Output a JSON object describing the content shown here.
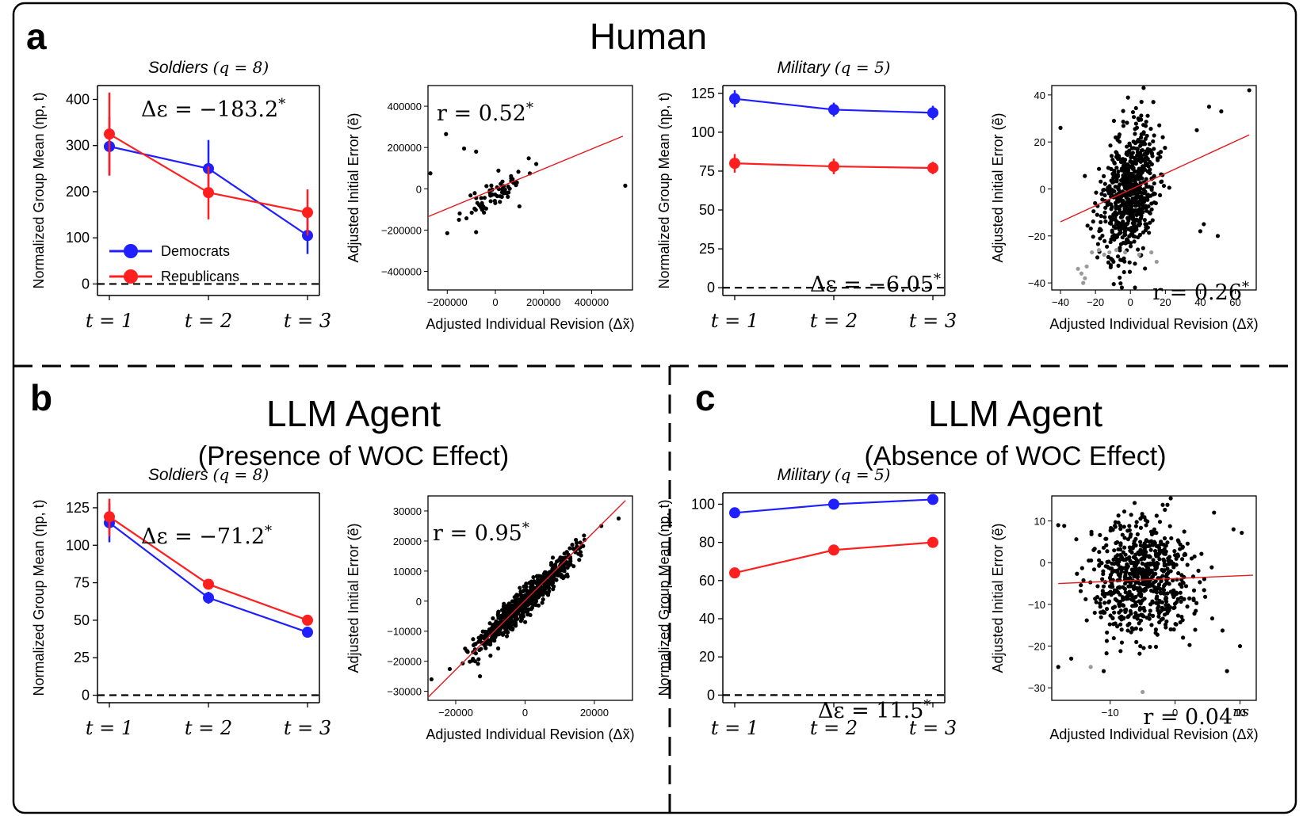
{
  "figure": {
    "panel_letters": {
      "a": "a",
      "b": "b",
      "c": "c"
    },
    "headings": {
      "a": "Human",
      "b": "LLM Agent",
      "b_sub": "(Presence of WOC Effect)",
      "c": "LLM Agent",
      "c_sub": "(Absence of WOC Effect)"
    },
    "colors": {
      "democrats": "#1f1fff",
      "republicans": "#ff1f1f",
      "scatter": "#000000",
      "outlier": "#9a9a9a",
      "fit": "#e41a1c",
      "frame": "#000000"
    }
  },
  "chart_data": [
    {
      "id": "a-soldiers",
      "type": "line",
      "title": "Soldiers",
      "title_q": "(q = 8)",
      "xlabel": "",
      "ylabel": "Normalized Group Mean (η_{p,t})",
      "categories": [
        "t = 1",
        "t = 2",
        "t = 3"
      ],
      "yticks": [
        0,
        100,
        200,
        300,
        400
      ],
      "ylim": [
        -25,
        430
      ],
      "grid": false,
      "legend_position": "lower-left",
      "series": [
        {
          "name": "Democrats",
          "color": "#1f1fff",
          "values": [
            298,
            250,
            105
          ],
          "err": [
            [
              235,
              362
            ],
            [
              190,
              312
            ],
            [
              65,
              145
            ]
          ]
        },
        {
          "name": "Republicans",
          "color": "#ff1f1f",
          "values": [
            325,
            198,
            155
          ],
          "err": [
            [
              235,
              415
            ],
            [
              140,
              255
            ],
            [
              105,
              205
            ]
          ]
        }
      ],
      "reference_line": 0,
      "annotation": "Δε = −183.2*"
    },
    {
      "id": "a-soldiers-scatter",
      "type": "scatter",
      "xlabel": "Adjusted Individual Revision (Δx̃)",
      "ylabel": "Adjusted Initial Error (ẽ)",
      "xticks": [
        -200000,
        0,
        200000,
        400000
      ],
      "xtick_labels": [
        "−200000",
        "0",
        "200000",
        "400000"
      ],
      "yticks": [
        -400000,
        -200000,
        0,
        200000,
        400000
      ],
      "ytick_labels": [
        "−400000",
        "−200000",
        "0",
        "200000",
        "400000"
      ],
      "xlim": [
        -280000,
        570000
      ],
      "ylim": [
        -490000,
        500000
      ],
      "fit": {
        "x": [
          -280000,
          530000
        ],
        "y": [
          -135000,
          255000
        ]
      },
      "annotation": "r = 0.52*",
      "points": {
        "n": 70,
        "center": [
          0,
          -20000
        ],
        "spread": [
          60000,
          55000
        ],
        "corr": 0.75,
        "seed": 11,
        "extra": [
          [
            -280000,
            75000
          ],
          [
            -205000,
            265000
          ],
          [
            -130000,
            195000
          ],
          [
            -80000,
            180000
          ],
          [
            540000,
            15000
          ],
          [
            -200000,
            -215000
          ],
          [
            -80000,
            -210000
          ],
          [
            100000,
            -85000
          ],
          [
            170000,
            120000
          ]
        ]
      }
    },
    {
      "id": "a-military",
      "type": "line",
      "title": "Military",
      "title_q": "(q = 5)",
      "xlabel": "",
      "ylabel": "Normalized Group Mean (η_{p,t})",
      "categories": [
        "t = 1",
        "t = 2",
        "t = 3"
      ],
      "yticks": [
        0,
        25,
        50,
        75,
        100,
        125
      ],
      "ylim": [
        -5,
        130
      ],
      "grid": false,
      "series": [
        {
          "name": "Democrats",
          "color": "#1f1fff",
          "values": [
            121.5,
            114.5,
            112.5
          ],
          "err": [
            [
              116,
              127
            ],
            [
              110,
              119
            ],
            [
              108,
              117
            ]
          ]
        },
        {
          "name": "Republicans",
          "color": "#ff1f1f",
          "values": [
            80,
            78,
            77
          ],
          "err": [
            [
              74,
              86
            ],
            [
              73,
              83
            ],
            [
              73,
              81
            ]
          ]
        }
      ],
      "reference_line": 0,
      "annotation": "Δε = −6.05*"
    },
    {
      "id": "a-military-scatter",
      "type": "scatter",
      "xlabel": "Adjusted Individual Revision (Δx̃)",
      "ylabel": "Adjusted Initial Error (ẽ)",
      "xticks": [
        -40,
        -20,
        0,
        20,
        40,
        60
      ],
      "xtick_labels": [
        "−40",
        "−20",
        "0",
        "20",
        "40",
        "60"
      ],
      "yticks": [
        -40,
        -20,
        0,
        20,
        40
      ],
      "ytick_labels": [
        "−40",
        "−20",
        "0",
        "20",
        "40"
      ],
      "xlim": [
        -45,
        72
      ],
      "ylim": [
        -43,
        44
      ],
      "fit": {
        "x": [
          -40,
          68
        ],
        "y": [
          -14,
          23
        ]
      },
      "annotation": "r = 0.26*",
      "points": {
        "n": 700,
        "center": [
          -1,
          -2
        ],
        "spread": [
          8,
          14
        ],
        "corr": 0.3,
        "seed": 23,
        "extra": [
          [
            -40,
            26
          ],
          [
            68,
            42
          ],
          [
            45,
            35
          ],
          [
            52,
            33
          ],
          [
            42,
            -15
          ],
          [
            50,
            -20
          ],
          [
            40,
            -18
          ],
          [
            38,
            25
          ]
        ]
      },
      "outliers": [
        [
          -30,
          -34
        ],
        [
          -28,
          -36
        ],
        [
          -26,
          -38
        ],
        [
          -25,
          -33
        ],
        [
          -22,
          -27
        ],
        [
          -18,
          -26
        ],
        [
          -15,
          -28
        ],
        [
          -12,
          -27
        ],
        [
          -8,
          -26
        ],
        [
          -3,
          -27
        ],
        [
          5,
          -28
        ],
        [
          12,
          -27
        ],
        [
          15,
          -31
        ],
        [
          -27,
          -40
        ]
      ]
    },
    {
      "id": "b-soldiers",
      "type": "line",
      "title": "Soldiers",
      "title_q": "(q = 8)",
      "xlabel": "",
      "ylabel": "Normalized Group Mean (η_{p,t})",
      "categories": [
        "t = 1",
        "t = 2",
        "t = 3"
      ],
      "yticks": [
        0,
        25,
        50,
        75,
        100,
        125
      ],
      "ylim": [
        -5,
        135
      ],
      "grid": false,
      "series": [
        {
          "name": "Democrats",
          "color": "#1f1fff",
          "values": [
            115,
            65,
            42
          ],
          "err": [
            [
              102,
              128
            ],
            [
              61,
              69
            ],
            [
              40,
              44
            ]
          ]
        },
        {
          "name": "Republicans",
          "color": "#ff1f1f",
          "values": [
            119,
            74,
            50
          ],
          "err": [
            [
              106,
              131
            ],
            [
              71,
              77
            ],
            [
              48,
              52
            ]
          ]
        }
      ],
      "reference_line": 0,
      "annotation": "Δε = −71.2*"
    },
    {
      "id": "b-soldiers-scatter",
      "type": "scatter",
      "xlabel": "Adjusted Individual Revision (Δx̃)",
      "ylabel": "Adjusted Initial Error (ẽ)",
      "xticks": [
        -20000,
        0,
        20000
      ],
      "xtick_labels": [
        "−20000",
        "0",
        "20000"
      ],
      "yticks": [
        -30000,
        -20000,
        -10000,
        0,
        10000,
        20000,
        30000
      ],
      "ytick_labels": [
        "−30000",
        "−20000",
        "−10000",
        "0",
        "10000",
        "20000",
        "30000"
      ],
      "xlim": [
        -28000,
        31000
      ],
      "ylim": [
        -33000,
        35000
      ],
      "fit": {
        "x": [
          -28000,
          29000
        ],
        "y": [
          -32000,
          33500
        ]
      },
      "annotation": "r = 0.95*",
      "points": {
        "n": 650,
        "center": [
          0,
          0
        ],
        "spread": [
          7000,
          8000
        ],
        "corr": 0.95,
        "seed": 37,
        "extra": [
          [
            -27000,
            -26000
          ],
          [
            27000,
            27500
          ],
          [
            -13000,
            -25000
          ],
          [
            22000,
            25000
          ]
        ]
      }
    },
    {
      "id": "c-military",
      "type": "line",
      "title": "Military",
      "title_q": "(q = 5)",
      "xlabel": "",
      "ylabel": "Normalized Group Mean (η_{p,t})",
      "categories": [
        "t = 1",
        "t = 2",
        "t = 3"
      ],
      "yticks": [
        0,
        20,
        40,
        60,
        80,
        100
      ],
      "ylim": [
        -4,
        106
      ],
      "grid": false,
      "series": [
        {
          "name": "Democrats",
          "color": "#1f1fff",
          "values": [
            95.5,
            100,
            102.5
          ],
          "err": [
            [
              94.5,
              96.5
            ],
            [
              99,
              101
            ],
            [
              101.5,
              103.5
            ]
          ]
        },
        {
          "name": "Republicans",
          "color": "#ff1f1f",
          "values": [
            64,
            76,
            80
          ],
          "err": [
            [
              63,
              65
            ],
            [
              75,
              77
            ],
            [
              79,
              81
            ]
          ]
        }
      ],
      "reference_line": 0,
      "annotation": "Δε = 11.5*"
    },
    {
      "id": "c-military-scatter",
      "type": "scatter",
      "xlabel": "Adjusted Individual Revision (Δx̃)",
      "ylabel": "Adjusted Initial Error (ẽ)",
      "xticks": [
        -10,
        0,
        10
      ],
      "xtick_labels": [
        "−10",
        "0",
        "10"
      ],
      "yticks": [
        -30,
        -20,
        -10,
        0,
        10
      ],
      "ytick_labels": [
        "−30",
        "−20",
        "−10",
        "0",
        "10"
      ],
      "xlim": [
        -19,
        12.5
      ],
      "ylim": [
        -33,
        16
      ],
      "fit": {
        "x": [
          -18,
          12
        ],
        "y": [
          -5,
          -3
        ]
      },
      "annotation": "r = 0.04^ns",
      "points": {
        "n": 700,
        "center": [
          -5,
          -4
        ],
        "spread": [
          4,
          7
        ],
        "corr": 0.04,
        "seed": 51,
        "extra": [
          [
            -18,
            9
          ],
          [
            -18,
            -25
          ],
          [
            -16,
            -23
          ],
          [
            -11,
            -26
          ],
          [
            6,
            12
          ],
          [
            10,
            -20
          ],
          [
            8,
            -26
          ],
          [
            9,
            8
          ]
        ]
      },
      "outliers": [
        [
          -13,
          -25
        ],
        [
          -5,
          -31
        ]
      ]
    }
  ],
  "legend": {
    "democrats": "Democrats",
    "republicans": "Republicans"
  }
}
